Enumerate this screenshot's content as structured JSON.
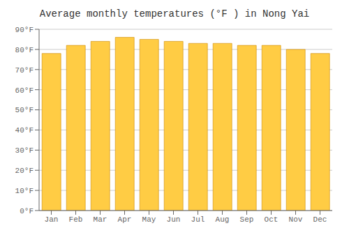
{
  "chart_data": {
    "type": "bar",
    "title": "Average monthly temperatures (°F ) in Nong Yai",
    "categories": [
      "Jan",
      "Feb",
      "Mar",
      "Apr",
      "May",
      "Jun",
      "Jul",
      "Aug",
      "Sep",
      "Oct",
      "Nov",
      "Dec"
    ],
    "values": [
      78,
      82,
      84,
      86,
      85,
      84,
      83,
      83,
      82,
      82,
      80,
      78
    ],
    "color": "#FFCC44",
    "ylim": [
      0,
      90
    ],
    "yticks": [
      {
        "value": 0,
        "label": "0°F"
      },
      {
        "value": 10,
        "label": "10°F"
      },
      {
        "value": 20,
        "label": "20°F"
      },
      {
        "value": 30,
        "label": "30°F"
      },
      {
        "value": 40,
        "label": "40°F"
      },
      {
        "value": 50,
        "label": "50°F"
      },
      {
        "value": 60,
        "label": "60°F"
      },
      {
        "value": 70,
        "label": "70°F"
      },
      {
        "value": 80,
        "label": "80°F"
      },
      {
        "value": 90,
        "label": "90°F"
      }
    ],
    "grid": true
  }
}
